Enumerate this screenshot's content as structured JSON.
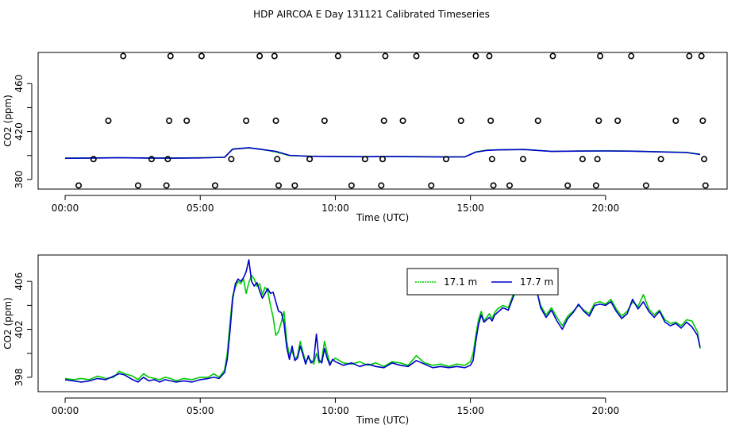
{
  "title": "HDP AIRCOA E  Day 131121  Calibrated Timeseries",
  "chart_data": [
    {
      "type": "scatter",
      "xlabel": "Time (UTC)",
      "ylabel": "CO2 (ppm)",
      "x_ticks": [
        "00:00",
        "05:00",
        "10:00",
        "15:00",
        "20:00"
      ],
      "x_tick_values": [
        0,
        5,
        10,
        15,
        20
      ],
      "y_ticks": [
        "380",
        "420",
        "460"
      ],
      "y_tick_values": [
        380,
        420,
        460
      ],
      "xlim": [
        -1.0,
        24.5
      ],
      "ylim": [
        372,
        486
      ],
      "points": [
        [
          0.5,
          375
        ],
        [
          1.05,
          397
        ],
        [
          1.6,
          429
        ],
        [
          2.15,
          483
        ],
        [
          2.7,
          375
        ],
        [
          3.2,
          397
        ],
        [
          3.75,
          375
        ],
        [
          3.8,
          397
        ],
        [
          3.85,
          429
        ],
        [
          3.9,
          483
        ],
        [
          4.5,
          429
        ],
        [
          5.05,
          483
        ],
        [
          5.55,
          375
        ],
        [
          6.15,
          397
        ],
        [
          6.7,
          429
        ],
        [
          7.2,
          483
        ],
        [
          7.75,
          483
        ],
        [
          7.8,
          429
        ],
        [
          7.85,
          397
        ],
        [
          7.9,
          375
        ],
        [
          8.5,
          375
        ],
        [
          9.05,
          397
        ],
        [
          9.6,
          429
        ],
        [
          10.1,
          483
        ],
        [
          10.6,
          375
        ],
        [
          11.1,
          397
        ],
        [
          11.7,
          375
        ],
        [
          11.75,
          397
        ],
        [
          11.8,
          429
        ],
        [
          11.85,
          483
        ],
        [
          12.5,
          429
        ],
        [
          13.0,
          483
        ],
        [
          13.55,
          375
        ],
        [
          14.1,
          397
        ],
        [
          14.65,
          429
        ],
        [
          15.2,
          483
        ],
        [
          15.7,
          483
        ],
        [
          15.75,
          429
        ],
        [
          15.8,
          397
        ],
        [
          15.85,
          375
        ],
        [
          16.45,
          375
        ],
        [
          16.95,
          397
        ],
        [
          17.5,
          429
        ],
        [
          18.05,
          483
        ],
        [
          18.6,
          375
        ],
        [
          19.15,
          397
        ],
        [
          19.65,
          375
        ],
        [
          19.7,
          397
        ],
        [
          19.75,
          429
        ],
        [
          19.8,
          483
        ],
        [
          20.45,
          429
        ],
        [
          20.95,
          483
        ],
        [
          21.5,
          375
        ],
        [
          22.05,
          397
        ],
        [
          22.6,
          429
        ],
        [
          23.1,
          483
        ],
        [
          23.55,
          483
        ],
        [
          23.6,
          429
        ],
        [
          23.65,
          397
        ],
        [
          23.7,
          375
        ]
      ],
      "series": [
        {
          "color": "#00cc00",
          "x": [
            0,
            1,
            2,
            3,
            4,
            5,
            5.9,
            6.2,
            6.5,
            6.8,
            7.2,
            7.8,
            8.3,
            9,
            10,
            11,
            12,
            13,
            14,
            14.8,
            15.2,
            15.6,
            16,
            17,
            18,
            19,
            20,
            21,
            22,
            23,
            23.5
          ],
          "values": [
            397.8,
            398.0,
            398.2,
            398.0,
            397.9,
            398.1,
            398.6,
            405.5,
            406.0,
            406.3,
            405.5,
            403.0,
            400.0,
            399.5,
            399.2,
            399.1,
            399.2,
            399.1,
            398.9,
            399.0,
            403.0,
            404.5,
            404.8,
            405.0,
            403.5,
            403.8,
            403.9,
            403.7,
            403.1,
            402.6,
            401.0
          ]
        },
        {
          "color": "#0000cc",
          "x": [
            0,
            1,
            2,
            3,
            4,
            5,
            5.9,
            6.2,
            6.5,
            6.8,
            7.2,
            7.8,
            8.3,
            9,
            10,
            11,
            12,
            13,
            14,
            14.8,
            15.2,
            15.6,
            16,
            17,
            18,
            19,
            20,
            21,
            22,
            23,
            23.5
          ],
          "values": [
            397.7,
            397.9,
            398.1,
            397.9,
            397.8,
            398.0,
            398.5,
            405.3,
            405.9,
            406.5,
            405.3,
            403.5,
            400.2,
            399.4,
            399.1,
            399.0,
            399.1,
            399.0,
            398.8,
            398.9,
            402.8,
            404.3,
            404.7,
            405.0,
            403.4,
            403.7,
            403.8,
            403.6,
            403.0,
            402.5,
            400.8
          ]
        }
      ]
    },
    {
      "type": "line",
      "xlabel": "Time (UTC)",
      "ylabel": "CO2 (ppm)",
      "x_ticks": [
        "00:00",
        "05:00",
        "10:00",
        "15:00",
        "20:00"
      ],
      "x_tick_values": [
        0,
        5,
        10,
        15,
        20
      ],
      "y_ticks": [
        "398",
        "402",
        "406"
      ],
      "y_tick_values": [
        398,
        402,
        406
      ],
      "xlim": [
        -1.0,
        24.5
      ],
      "ylim": [
        396.8,
        408.2
      ],
      "legend": {
        "position": "top-right",
        "entries": [
          "17.1 m",
          "17.7 m"
        ]
      },
      "series": [
        {
          "name": "17.1 m",
          "color": "#00cc00",
          "x": [
            0,
            0.3,
            0.6,
            0.9,
            1.2,
            1.5,
            1.8,
            2.0,
            2.2,
            2.5,
            2.7,
            2.9,
            3.1,
            3.3,
            3.5,
            3.7,
            3.9,
            4.1,
            4.4,
            4.7,
            5.0,
            5.3,
            5.5,
            5.7,
            5.9,
            6.0,
            6.1,
            6.2,
            6.3,
            6.4,
            6.5,
            6.6,
            6.7,
            6.8,
            6.9,
            7.0,
            7.1,
            7.2,
            7.3,
            7.4,
            7.5,
            7.6,
            7.7,
            7.8,
            7.9,
            8.0,
            8.1,
            8.2,
            8.3,
            8.4,
            8.5,
            8.6,
            8.7,
            8.8,
            8.9,
            9.0,
            9.1,
            9.2,
            9.3,
            9.4,
            9.5,
            9.6,
            9.7,
            9.8,
            9.9,
            10.0,
            10.3,
            10.6,
            10.9,
            11.2,
            11.5,
            11.8,
            12.1,
            12.4,
            12.7,
            13.0,
            13.3,
            13.6,
            13.9,
            14.2,
            14.5,
            14.8,
            15.0,
            15.1,
            15.2,
            15.3,
            15.4,
            15.5,
            15.6,
            15.7,
            15.8,
            15.9,
            16.0,
            16.2,
            16.4,
            16.6,
            16.8,
            17.0,
            17.2,
            17.4,
            17.6,
            17.8,
            18.0,
            18.2,
            18.4,
            18.6,
            18.8,
            19.0,
            19.2,
            19.4,
            19.6,
            19.8,
            20.0,
            20.2,
            20.4,
            20.6,
            20.8,
            21.0,
            21.2,
            21.4,
            21.6,
            21.8,
            22.0,
            22.2,
            22.4,
            22.6,
            22.8,
            23.0,
            23.2,
            23.4,
            23.5
          ],
          "values": [
            397.9,
            397.8,
            397.9,
            397.8,
            398.1,
            397.9,
            398.0,
            398.5,
            398.3,
            398.1,
            397.8,
            398.3,
            398.0,
            397.9,
            397.8,
            398.0,
            397.9,
            397.7,
            397.9,
            397.8,
            398.0,
            398.0,
            398.3,
            398.0,
            398.6,
            400.0,
            402.5,
            404.8,
            405.5,
            406.0,
            405.8,
            406.2,
            405.0,
            405.9,
            406.5,
            406.2,
            405.6,
            405.8,
            404.9,
            405.5,
            405.2,
            404.0,
            403.0,
            401.5,
            401.8,
            402.6,
            403.5,
            401.0,
            399.8,
            400.2,
            399.5,
            399.8,
            401.0,
            400.1,
            399.3,
            399.6,
            399.4,
            399.1,
            400.0,
            399.2,
            399.5,
            401.0,
            400.0,
            399.2,
            399.4,
            399.6,
            399.2,
            399.1,
            399.3,
            399.0,
            399.2,
            398.9,
            399.3,
            399.2,
            399.0,
            399.8,
            399.2,
            399.0,
            399.1,
            398.9,
            399.1,
            399.0,
            399.3,
            400.0,
            401.5,
            402.8,
            403.5,
            402.7,
            403.0,
            403.3,
            402.9,
            403.4,
            403.7,
            404.0,
            403.8,
            405.0,
            405.8,
            405.3,
            405.7,
            405.6,
            404.0,
            403.2,
            403.8,
            403.0,
            402.3,
            403.1,
            403.5,
            404.0,
            403.6,
            403.3,
            404.2,
            404.3,
            404.1,
            404.5,
            403.7,
            403.1,
            403.5,
            404.3,
            403.9,
            404.9,
            403.7,
            403.2,
            403.6,
            402.8,
            402.5,
            402.6,
            402.3,
            402.8,
            402.7,
            401.8,
            400.4
          ],
          "note": ""
        },
        {
          "name": "17.7 m",
          "color": "#0000cc",
          "x": [
            0,
            0.3,
            0.6,
            0.9,
            1.2,
            1.5,
            1.8,
            2.0,
            2.2,
            2.5,
            2.7,
            2.9,
            3.1,
            3.3,
            3.5,
            3.7,
            3.9,
            4.1,
            4.4,
            4.7,
            5.0,
            5.3,
            5.5,
            5.7,
            5.9,
            6.0,
            6.1,
            6.2,
            6.3,
            6.4,
            6.5,
            6.6,
            6.7,
            6.8,
            6.9,
            7.0,
            7.1,
            7.2,
            7.3,
            7.4,
            7.5,
            7.6,
            7.7,
            7.8,
            7.9,
            8.0,
            8.1,
            8.2,
            8.3,
            8.4,
            8.5,
            8.6,
            8.7,
            8.8,
            8.9,
            9.0,
            9.1,
            9.2,
            9.3,
            9.4,
            9.5,
            9.6,
            9.7,
            9.8,
            9.9,
            10.0,
            10.3,
            10.6,
            10.9,
            11.2,
            11.5,
            11.8,
            12.1,
            12.4,
            12.7,
            13.0,
            13.3,
            13.6,
            13.9,
            14.2,
            14.5,
            14.8,
            15.0,
            15.1,
            15.2,
            15.3,
            15.4,
            15.5,
            15.6,
            15.7,
            15.8,
            15.9,
            16.0,
            16.2,
            16.4,
            16.6,
            16.8,
            17.0,
            17.2,
            17.4,
            17.6,
            17.8,
            18.0,
            18.2,
            18.4,
            18.6,
            18.8,
            19.0,
            19.2,
            19.4,
            19.6,
            19.8,
            20.0,
            20.2,
            20.4,
            20.6,
            20.8,
            21.0,
            21.2,
            21.4,
            21.6,
            21.8,
            22.0,
            22.2,
            22.4,
            22.6,
            22.8,
            23.0,
            23.2,
            23.4,
            23.5
          ],
          "values": [
            397.8,
            397.7,
            397.6,
            397.7,
            397.9,
            397.8,
            398.1,
            398.3,
            398.2,
            397.8,
            397.6,
            398.0,
            397.7,
            397.8,
            397.6,
            397.8,
            397.7,
            397.6,
            397.7,
            397.6,
            397.8,
            397.9,
            398.0,
            397.9,
            398.4,
            399.5,
            401.8,
            404.5,
            405.8,
            406.2,
            406.0,
            406.3,
            406.8,
            407.8,
            406.0,
            405.6,
            405.9,
            405.2,
            404.6,
            405.0,
            405.4,
            405.0,
            405.1,
            404.3,
            403.5,
            403.4,
            402.5,
            400.5,
            399.5,
            400.6,
            399.4,
            399.6,
            400.6,
            399.9,
            399.1,
            399.8,
            399.2,
            399.4,
            401.6,
            399.4,
            399.2,
            400.4,
            399.6,
            399.0,
            399.5,
            399.3,
            399.0,
            399.2,
            398.9,
            399.1,
            398.9,
            398.8,
            399.2,
            399.0,
            398.9,
            399.4,
            399.1,
            398.8,
            398.9,
            398.8,
            398.9,
            398.8,
            399.0,
            399.4,
            401.0,
            402.4,
            403.2,
            402.6,
            402.8,
            403.0,
            402.7,
            403.2,
            403.4,
            403.8,
            403.6,
            404.8,
            405.6,
            405.9,
            405.4,
            405.8,
            403.8,
            403.0,
            403.6,
            402.7,
            402.0,
            402.9,
            403.4,
            404.1,
            403.5,
            403.1,
            404.0,
            404.1,
            404.0,
            404.3,
            403.5,
            402.9,
            403.3,
            404.5,
            403.7,
            404.3,
            403.5,
            403.0,
            403.5,
            402.6,
            402.3,
            402.5,
            402.1,
            402.6,
            402.2,
            401.5,
            400.5
          ]
        }
      ]
    }
  ]
}
